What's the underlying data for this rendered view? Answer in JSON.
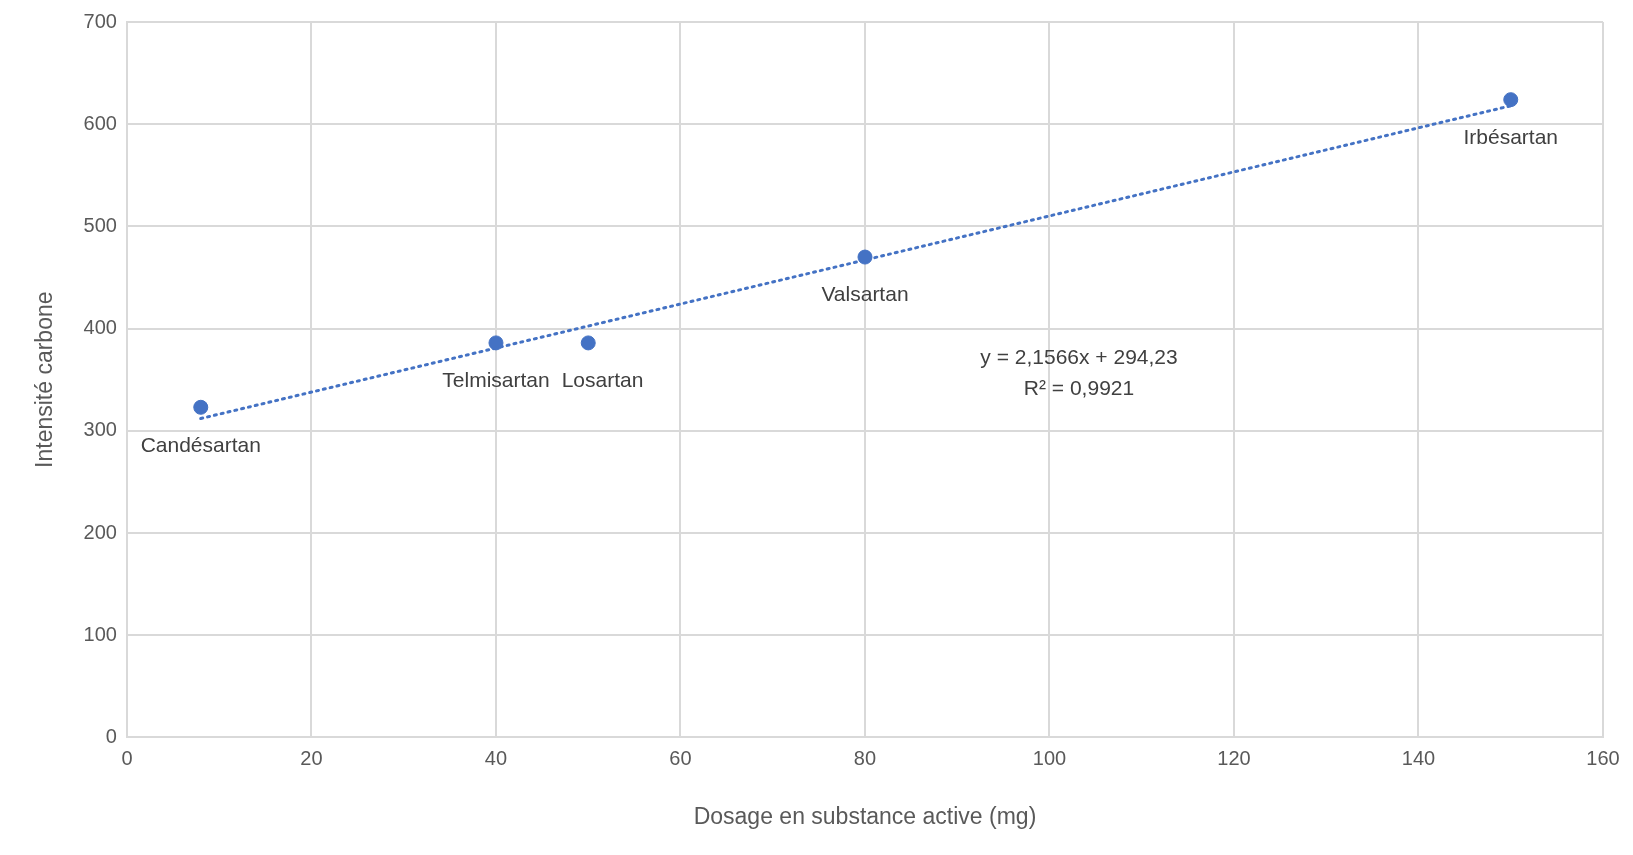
{
  "chart_data": {
    "type": "scatter",
    "xlabel": "Dosage en substance active (mg)",
    "ylabel": "Intensité carbone",
    "xlim": [
      0,
      160
    ],
    "xticks": [
      0,
      20,
      40,
      60,
      80,
      100,
      120,
      140,
      160
    ],
    "ylim": [
      0,
      700
    ],
    "yticks": [
      0,
      100,
      200,
      300,
      400,
      500,
      600,
      700
    ],
    "grid": true,
    "legend": false,
    "marker": "circle",
    "x": [
      8,
      40,
      50,
      80,
      150
    ],
    "series": [
      {
        "color": "#4472c4",
        "values": [
          323,
          386,
          386,
          470,
          624
        ]
      },
      {
        "type": "line",
        "color": "#4472c4",
        "x": [
          8,
          150
        ],
        "values": [
          312,
          618
        ],
        "marker": "none",
        "line_style": "dotted"
      }
    ],
    "annotations": [
      {
        "text": "Candésartan",
        "x": 8,
        "y": 323
      },
      {
        "text": "Telmisartan",
        "x": 40,
        "y": 386
      },
      {
        "text": "Losartan",
        "x": 50,
        "y": 386
      },
      {
        "text": "Valsartan",
        "x": 80,
        "y": 470
      },
      {
        "text": "Irbésartan",
        "x": 150,
        "y": 624
      },
      "y = 2,1566x + 294,23",
      "R² = 0,9921"
    ]
  }
}
